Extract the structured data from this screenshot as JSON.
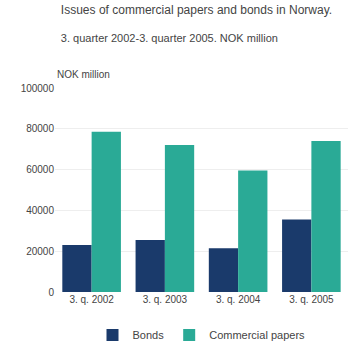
{
  "chart_data": {
    "type": "bar",
    "title": "Issues of commercial papers and bonds in Norway.",
    "subtitle": "3. quarter 2002-3. quarter 2005. NOK million",
    "ylabel": "NOK million",
    "categories": [
      "3. q. 2002",
      "3. q. 2003",
      "3. q. 2004",
      "3. q. 2005"
    ],
    "series": [
      {
        "name": "Bonds",
        "color": "#1a3a6b",
        "values": [
          23000,
          25500,
          21500,
          35500
        ]
      },
      {
        "name": "Commercial papers",
        "color": "#2aaa96",
        "values": [
          78500,
          72000,
          59500,
          74000
        ]
      }
    ],
    "ylim": [
      0,
      100000
    ],
    "yticks": [
      0,
      20000,
      40000,
      60000,
      80000,
      100000
    ],
    "grid": true,
    "legend": "bottom"
  }
}
